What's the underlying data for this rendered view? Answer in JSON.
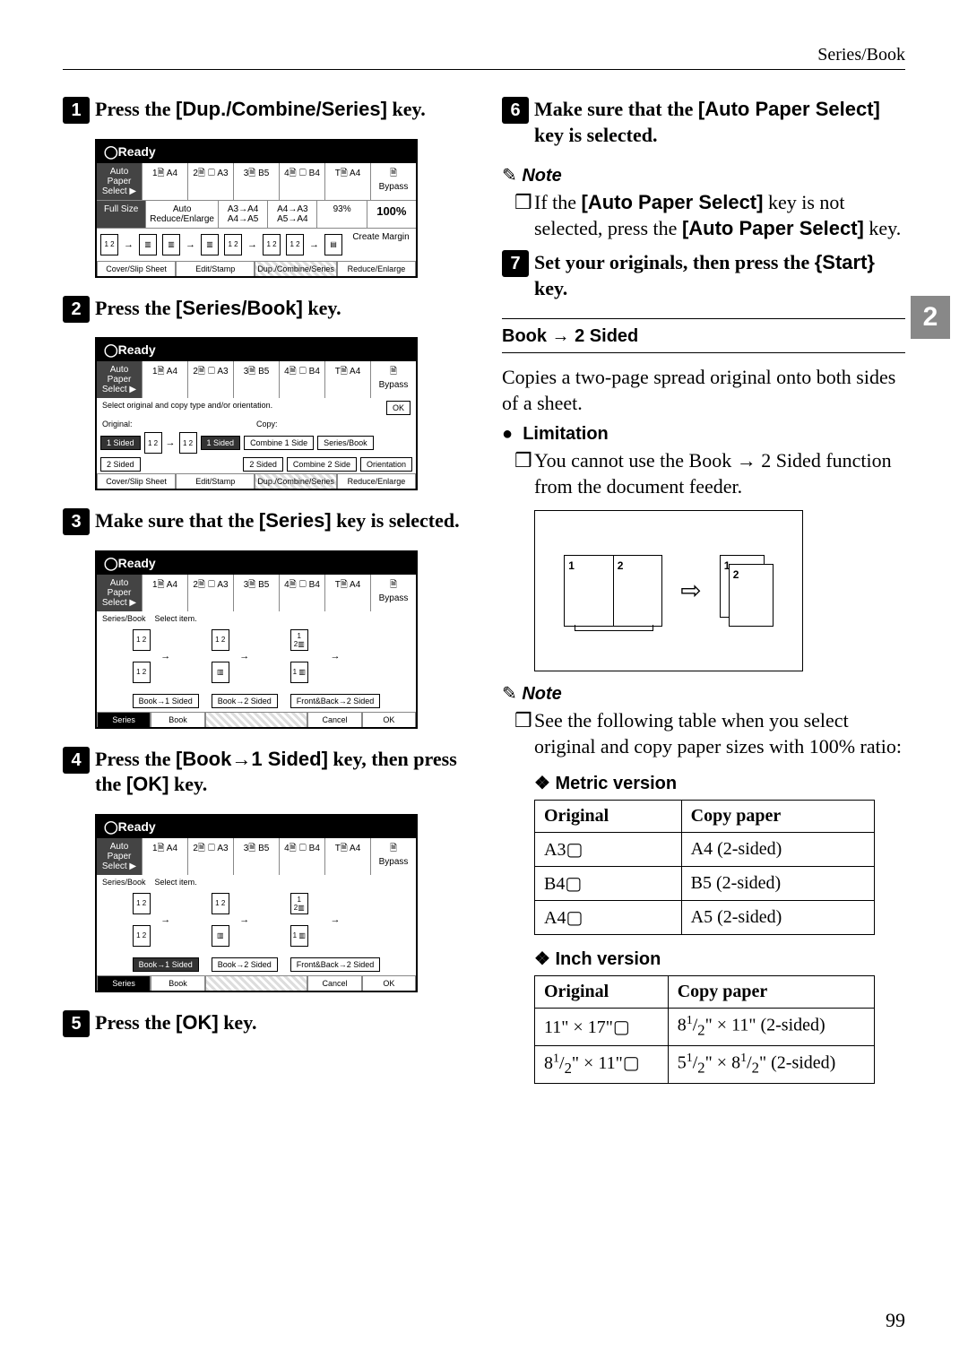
{
  "header": {
    "section": "Series/Book"
  },
  "side_tab": "2",
  "page_number": "99",
  "left": {
    "step1": {
      "pre": "Press the ",
      "key": "[Dup./Combine/Series]",
      "post": " key."
    },
    "step2": {
      "pre": "Press the ",
      "key": "[Series/Book]",
      "post": " key."
    },
    "step3": {
      "pre": "Make sure that the ",
      "key": "[Series]",
      "post": " key is selected."
    },
    "step4": {
      "pre": "Press the ",
      "key": "[Book→1 Sided]",
      "mid": " key, then press the ",
      "key2": "[OK]",
      "post": " key."
    },
    "step5": {
      "pre": "Press the ",
      "key": "[OK]",
      "post": " key."
    }
  },
  "right": {
    "step6": {
      "pre": "Make sure that the ",
      "key": "[Auto Paper Select]",
      "post": " key is selected."
    },
    "note1_label": "Note",
    "note1": {
      "pre": "If the ",
      "key1": "[Auto Paper Select]",
      "mid": " key is not selected, press the ",
      "key2": "[Auto Paper Select]",
      "post": " key."
    },
    "step7": {
      "pre": "Set your originals, then press the ",
      "key": "{Start}",
      "post": " key."
    },
    "section_title": "Book → 2 Sided",
    "section_intro": "Copies a two-page spread original onto both sides of a sheet.",
    "limitation_label": "Limitation",
    "limitation_text": "You cannot use the Book → 2 Sided function from the document feeder.",
    "note2_label": "Note",
    "note2_text": "See the following table when you select original and copy paper sizes with 100% ratio:",
    "metric_header": "Metric version",
    "metric_table": {
      "cols": [
        "Original",
        "Copy paper"
      ],
      "rows": [
        [
          "A3▢",
          "A4 (2-sided)"
        ],
        [
          "B4▢",
          "B5 (2-sided)"
        ],
        [
          "A4▢",
          "A5 (2-sided)"
        ]
      ]
    },
    "inch_header": "Inch version",
    "inch_table": {
      "cols": [
        "Original",
        "Copy paper"
      ],
      "rows_html": [
        [
          "11\" × 17\"▢",
          "8<sup>1</sup>/<sub>2</sub>\" × 11\" (2-sided)"
        ],
        [
          "8<sup>1</sup>/<sub>2</sub>\" × 11\"▢",
          "5<sup>1</sup>/<sub>2</sub>\" × 8<sup>1</sup>/<sub>2</sub>\" (2-sided)"
        ]
      ]
    }
  },
  "lcd": {
    "ready": "◯Ready",
    "auto_paper": "Auto Paper\nSelect ▶",
    "papers": [
      "1🗎\nA4",
      "2🗎 ▢\nA3",
      "3🗎\nB5",
      "4🗎 ▢\nB4",
      "T🗎\nA4"
    ],
    "bypass": "🗎\nBypass",
    "full_size": "Full Size",
    "auto_reduce": "Auto Reduce/Enlarge",
    "ratios": [
      "A3→A4\nA4→A5",
      "A4→A3\nA5→A4",
      "93%",
      "100%"
    ],
    "create_margin": "Create\nMargin",
    "tabs": [
      "Cover/Slip Sheet",
      "Edit/Stamp",
      "Dup./Combine/Series",
      "Reduce/Enlarge"
    ],
    "select_orig": "Select original and copy type and/or orientation.",
    "ok": "OK",
    "original_lbl": "Original:",
    "copy_lbl": "Copy:",
    "one_sided": "1 Sided",
    "two_sided": "2 Sided",
    "combine1": "Combine 1 Side",
    "combine2": "Combine 2 Side",
    "series_book": "Series/Book",
    "orientation": "Orientation",
    "select_item": "Select item.",
    "book1": "Book→1 Sided",
    "book2": "Book→2 Sided",
    "fb2": "Front&Back→2 Sided",
    "series_tab": "Series",
    "book_tab": "Book",
    "cancel": "Cancel"
  }
}
